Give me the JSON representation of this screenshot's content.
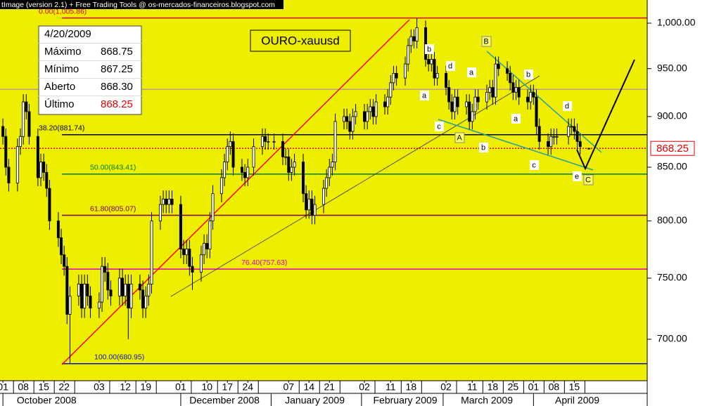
{
  "header": "tImage (version 2.1) + Free Trading Tools @ os-mercados-financeiros.blogspot.com",
  "chart_data": {
    "type": "candlestick",
    "title": "OURO-xauusd",
    "x": [
      "2008-10-01",
      "2008-10-02",
      "2008-10-03",
      "2008-10-06",
      "2008-10-07",
      "2008-10-08",
      "2008-10-09",
      "2008-10-10",
      "2008-10-13",
      "2008-10-14",
      "2008-10-15",
      "2008-10-16",
      "2008-10-17",
      "2008-10-20",
      "2008-10-21",
      "2008-10-22",
      "2008-10-23",
      "2008-10-24",
      "2008-10-27",
      "2008-10-28",
      "2008-10-29",
      "2008-10-30",
      "2008-10-31",
      "2008-11-03",
      "2008-11-04",
      "2008-11-05",
      "2008-11-06",
      "2008-11-07",
      "2008-11-10",
      "2008-11-11",
      "2008-11-12",
      "2008-11-13",
      "2008-11-14",
      "2008-11-17",
      "2008-11-18",
      "2008-11-19",
      "2008-11-20",
      "2008-11-21",
      "2008-11-24",
      "2008-11-25",
      "2008-11-26",
      "2008-11-27",
      "2008-11-28",
      "2008-12-01",
      "2008-12-02",
      "2008-12-03",
      "2008-12-04",
      "2008-12-05",
      "2008-12-08",
      "2008-12-09",
      "2008-12-10",
      "2008-12-11",
      "2008-12-12",
      "2008-12-15",
      "2008-12-16",
      "2008-12-17",
      "2008-12-18",
      "2008-12-19",
      "2008-12-22",
      "2008-12-23",
      "2008-12-24",
      "2008-12-26",
      "2008-12-29",
      "2008-12-30",
      "2008-12-31",
      "2009-01-02",
      "2009-01-05",
      "2009-01-06",
      "2009-01-07",
      "2009-01-08",
      "2009-01-09",
      "2009-01-12",
      "2009-01-13",
      "2009-01-14",
      "2009-01-15",
      "2009-01-16",
      "2009-01-19",
      "2009-01-20",
      "2009-01-21",
      "2009-01-22",
      "2009-01-23",
      "2009-01-26",
      "2009-01-27",
      "2009-01-28",
      "2009-01-29",
      "2009-01-30",
      "2009-02-02",
      "2009-02-03",
      "2009-02-04",
      "2009-02-05",
      "2009-02-06",
      "2009-02-09",
      "2009-02-10",
      "2009-02-11",
      "2009-02-12",
      "2009-02-13",
      "2009-02-16",
      "2009-02-17",
      "2009-02-18",
      "2009-02-19",
      "2009-02-20",
      "2009-02-23",
      "2009-02-24",
      "2009-02-25",
      "2009-02-26",
      "2009-02-27",
      "2009-03-02",
      "2009-03-03",
      "2009-03-04",
      "2009-03-05",
      "2009-03-06",
      "2009-03-09",
      "2009-03-10",
      "2009-03-11",
      "2009-03-12",
      "2009-03-13",
      "2009-03-16",
      "2009-03-17",
      "2009-03-18",
      "2009-03-19",
      "2009-03-20",
      "2009-03-23",
      "2009-03-24",
      "2009-03-25",
      "2009-03-26",
      "2009-03-27",
      "2009-03-30",
      "2009-03-31",
      "2009-04-01",
      "2009-04-02",
      "2009-04-03",
      "2009-04-06",
      "2009-04-07",
      "2009-04-08",
      "2009-04-09",
      "2009-04-13",
      "2009-04-14",
      "2009-04-15",
      "2009-04-16",
      "2009-04-17",
      "2009-04-20"
    ],
    "open": [
      890,
      880,
      850,
      835,
      870,
      880,
      915,
      905,
      880,
      840,
      855,
      845,
      830,
      800,
      785,
      770,
      760,
      720,
      735,
      745,
      725,
      745,
      735,
      725,
      730,
      760,
      755,
      740,
      735,
      750,
      735,
      745,
      725,
      745,
      740,
      725,
      735,
      745,
      800,
      815,
      820,
      815,
      820,
      815,
      775,
      770,
      775,
      760,
      755,
      770,
      780,
      775,
      800,
      825,
      840,
      855,
      870,
      875,
      850,
      845,
      840,
      850,
      870,
      880,
      875,
      875,
      875,
      860,
      860,
      845,
      850,
      855,
      825,
      810,
      820,
      805,
      815,
      830,
      840,
      850,
      855,
      895,
      900,
      895,
      885,
      900,
      905,
      895,
      905,
      910,
      900,
      915,
      910,
      920,
      935,
      945,
      940,
      955,
      975,
      985,
      980,
      995,
      960,
      955,
      960,
      940,
      945,
      930,
      915,
      905,
      920,
      910,
      915,
      895,
      905,
      920,
      915,
      925,
      930,
      920,
      955,
      950,
      945,
      935,
      925,
      930,
      920,
      915,
      925,
      920,
      890,
      875,
      870,
      880,
      880,
      880,
      890,
      890,
      885,
      875,
      868.3
    ],
    "high": [
      898,
      888,
      858,
      878,
      888,
      923,
      923,
      913,
      888,
      863,
      863,
      853,
      838,
      808,
      793,
      778,
      768,
      743,
      753,
      753,
      753,
      753,
      743,
      738,
      768,
      768,
      763,
      748,
      758,
      758,
      753,
      753,
      753,
      753,
      748,
      743,
      753,
      808,
      823,
      828,
      828,
      828,
      828,
      823,
      783,
      783,
      783,
      768,
      778,
      788,
      788,
      808,
      833,
      848,
      863,
      878,
      885,
      883,
      858,
      853,
      858,
      878,
      888,
      888,
      883,
      883,
      883,
      868,
      868,
      858,
      863,
      863,
      833,
      828,
      828,
      823,
      838,
      848,
      858,
      863,
      903,
      908,
      908,
      903,
      908,
      913,
      913,
      913,
      918,
      918,
      923,
      923,
      928,
      943,
      953,
      953,
      963,
      983,
      993,
      993,
      1005.86,
      1003,
      968,
      968,
      968,
      953,
      953,
      938,
      923,
      928,
      928,
      923,
      923,
      913,
      928,
      928,
      933,
      938,
      938,
      963,
      963,
      958,
      953,
      943,
      938,
      938,
      928,
      933,
      933,
      928,
      898,
      883,
      888,
      888,
      888,
      898,
      898,
      898,
      893,
      883,
      868.75
    ],
    "low": [
      872,
      842,
      827,
      827,
      862,
      872,
      897,
      872,
      832,
      832,
      837,
      822,
      792,
      777,
      762,
      752,
      712,
      681,
      727,
      717,
      717,
      727,
      717,
      717,
      722,
      747,
      732,
      727,
      727,
      727,
      727,
      700,
      717,
      732,
      717,
      717,
      727,
      737,
      792,
      807,
      807,
      807,
      807,
      767,
      762,
      762,
      752,
      740,
      747,
      762,
      767,
      767,
      792,
      817,
      832,
      847,
      862,
      842,
      837,
      832,
      832,
      842,
      862,
      867,
      867,
      867,
      852,
      852,
      837,
      837,
      842,
      817,
      802,
      802,
      797,
      797,
      807,
      822,
      832,
      842,
      847,
      887,
      887,
      877,
      877,
      892,
      887,
      887,
      897,
      892,
      892,
      902,
      902,
      912,
      927,
      932,
      932,
      947,
      967,
      972,
      972,
      952,
      947,
      947,
      932,
      932,
      922,
      907,
      897,
      897,
      902,
      902,
      887,
      887,
      897,
      907,
      907,
      917,
      912,
      912,
      942,
      937,
      927,
      917,
      917,
      912,
      907,
      907,
      912,
      882,
      867,
      862,
      862,
      872,
      872,
      872,
      882,
      877,
      867,
      862,
      867.25
    ],
    "close": [
      880,
      850,
      835,
      870,
      880,
      915,
      905,
      880,
      840,
      855,
      845,
      830,
      800,
      785,
      770,
      760,
      720,
      735,
      745,
      725,
      745,
      735,
      725,
      730,
      760,
      755,
      740,
      735,
      750,
      735,
      745,
      725,
      745,
      740,
      725,
      735,
      745,
      800,
      815,
      820,
      815,
      820,
      815,
      775,
      770,
      775,
      760,
      755,
      770,
      780,
      775,
      800,
      825,
      840,
      855,
      870,
      875,
      850,
      845,
      840,
      850,
      870,
      880,
      875,
      875,
      875,
      860,
      860,
      845,
      850,
      855,
      825,
      810,
      820,
      805,
      815,
      830,
      840,
      850,
      855,
      895,
      900,
      895,
      885,
      900,
      905,
      895,
      905,
      910,
      900,
      915,
      910,
      920,
      935,
      945,
      940,
      955,
      975,
      985,
      980,
      995,
      960,
      955,
      960,
      940,
      945,
      930,
      915,
      905,
      920,
      910,
      915,
      895,
      905,
      920,
      915,
      925,
      930,
      920,
      955,
      950,
      945,
      935,
      925,
      930,
      920,
      915,
      925,
      920,
      890,
      875,
      870,
      880,
      880,
      880,
      890,
      890,
      885,
      875,
      870,
      868.25
    ],
    "log_scale": true,
    "ylim": [
      668,
      1026.5
    ],
    "yticks": [
      {
        "value": 1000,
        "label": "1,000.00"
      },
      {
        "value": 950,
        "label": "950.00"
      },
      {
        "value": 900,
        "label": "900.00"
      },
      {
        "value": 850,
        "label": "850.00"
      },
      {
        "value": 800,
        "label": "800.00"
      },
      {
        "value": 750,
        "label": "750.00"
      },
      {
        "value": 700,
        "label": "700.00"
      }
    ],
    "xlim": [
      "2008-09-30",
      "2009-05-10"
    ],
    "xticks": [
      {
        "value": "2008-10-01",
        "label": "01"
      },
      {
        "value": "2008-10-08",
        "label": "08"
      },
      {
        "value": "2008-10-15",
        "label": "15"
      },
      {
        "value": "2008-10-22",
        "label": "22"
      },
      {
        "value": "2008-11-03",
        "label": "03"
      },
      {
        "value": "2008-11-12",
        "label": "12"
      },
      {
        "value": "2008-11-19",
        "label": "19"
      },
      {
        "value": "2008-12-01",
        "label": "01"
      },
      {
        "value": "2008-12-10",
        "label": "10"
      },
      {
        "value": "2008-12-17",
        "label": "17"
      },
      {
        "value": "2008-12-24",
        "label": "24"
      },
      {
        "value": "2009-01-07",
        "label": "07"
      },
      {
        "value": "2009-01-14",
        "label": "14"
      },
      {
        "value": "2009-01-21",
        "label": "21"
      },
      {
        "value": "2009-02-02",
        "label": "02"
      },
      {
        "value": "2009-02-11",
        "label": "11"
      },
      {
        "value": "2009-02-18",
        "label": "18"
      },
      {
        "value": "2009-03-02",
        "label": "02"
      },
      {
        "value": "2009-03-11",
        "label": "11"
      },
      {
        "value": "2009-03-18",
        "label": "18"
      },
      {
        "value": "2009-03-25",
        "label": "25"
      },
      {
        "value": "2009-04-01",
        "label": "01"
      },
      {
        "value": "2009-04-08",
        "label": "08"
      },
      {
        "value": "2009-04-15",
        "label": "15"
      }
    ],
    "month_labels": [
      {
        "value": "2008-10",
        "label": "October 2008"
      },
      {
        "value": "2008-12",
        "label": "December 2008"
      },
      {
        "value": "2009-01",
        "label": "January 2009"
      },
      {
        "value": "2009-02",
        "label": "February 2009"
      },
      {
        "value": "2009-03",
        "label": "March 2009"
      },
      {
        "value": "2009-04",
        "label": "April 2009"
      }
    ],
    "candle_color": "#000000",
    "background": "#eeee00",
    "fib_levels": [
      {
        "label": "0.00(1,005.86)",
        "value": 1005.86,
        "color": "#e00000"
      },
      {
        "label": "38.20(881.74)",
        "value": 881.74,
        "color": "#000000"
      },
      {
        "label": "50.00(843.41)",
        "value": 843.41,
        "color": "#008000"
      },
      {
        "label": "61.80(805.07)",
        "value": 805.07,
        "color": "#800040"
      },
      {
        "label": "76.40(757.63)",
        "value": 757.63,
        "color": "#e000c0"
      },
      {
        "label": "100.00(680.95)",
        "value": 680.95,
        "color": "#1010c0"
      }
    ],
    "hlines": [
      {
        "value": 928,
        "color": "#c0a080"
      }
    ],
    "last_price_color": "#e00000",
    "wave_labels": [
      "b",
      "d",
      "a",
      "a",
      "c",
      "A",
      "B",
      "b",
      "a",
      "d",
      "b",
      "c",
      "e",
      "C"
    ]
  },
  "info": {
    "date": "4/20/2009",
    "rows": [
      {
        "label": "Máximo",
        "value": "868.75"
      },
      {
        "label": "Mínimo",
        "value": "867.25"
      },
      {
        "label": "Aberto",
        "value": "868.30"
      },
      {
        "label": "Último",
        "value": "868.25"
      }
    ]
  }
}
